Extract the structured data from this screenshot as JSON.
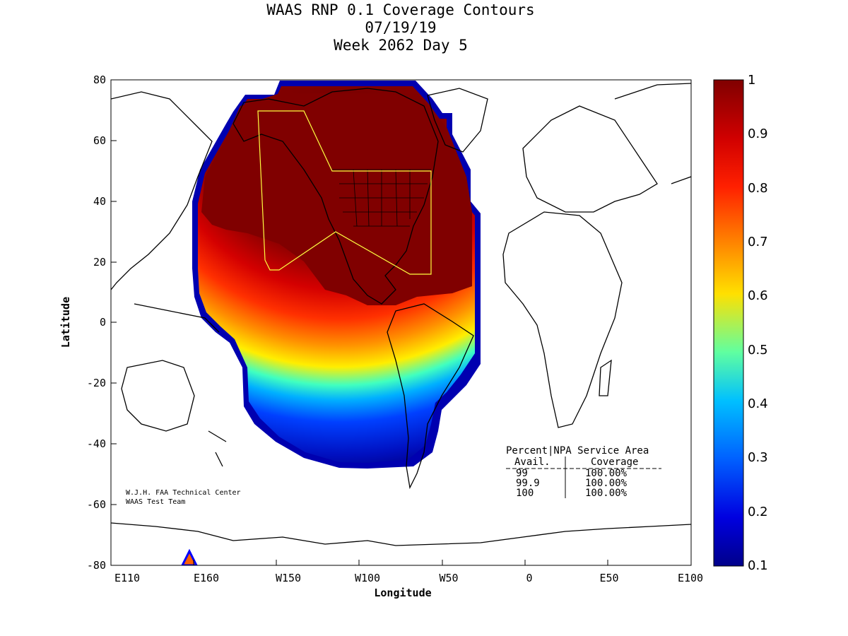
{
  "title": {
    "line1": "WAAS RNP 0.1 Coverage Contours",
    "line2": "07/19/19",
    "line3": "Week 2062 Day 5"
  },
  "axes": {
    "xlabel": "Longitude",
    "ylabel": "Latitude",
    "xticks": [
      "E110",
      "E160",
      "W150",
      "W100",
      "W50",
      "0",
      "E50",
      "E100"
    ],
    "yticks": [
      "80",
      "60",
      "40",
      "20",
      "0",
      "-20",
      "-40",
      "-60",
      "-80"
    ]
  },
  "colorbar": {
    "ticks": [
      "1",
      "0.9",
      "0.8",
      "0.7",
      "0.6",
      "0.5",
      "0.4",
      "0.3",
      "0.2",
      "0.1"
    ],
    "colors": [
      "#800000",
      "#ff0000",
      "#ff8000",
      "#ffff00",
      "#00ffff",
      "#0000ff",
      "#00008f"
    ]
  },
  "table": {
    "header1": "Percent|NPA Service Area",
    "header2_left": "Avail.",
    "header2_right": "Coverage",
    "rows": [
      {
        "avail": "99",
        "coverage": "100.00%"
      },
      {
        "avail": "99.9",
        "coverage": "100.00%"
      },
      {
        "avail": "100",
        "coverage": "100.00%"
      }
    ]
  },
  "credit": {
    "line1": "W.J.H. FAA Technical Center",
    "line2": "WAAS Test Team"
  }
}
